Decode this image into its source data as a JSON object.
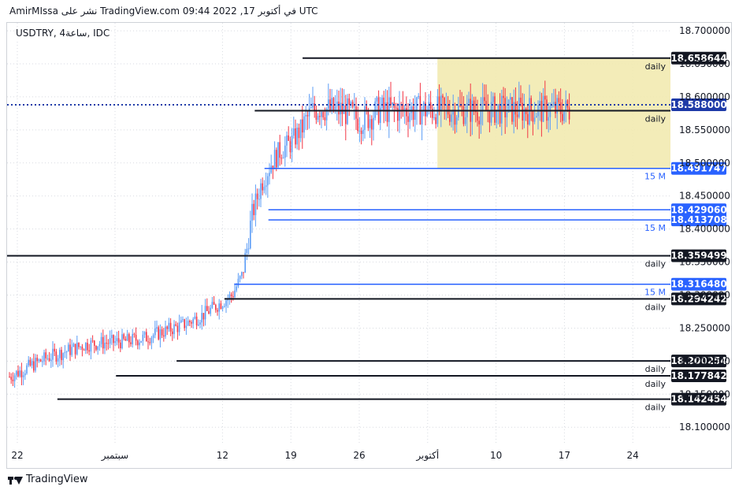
{
  "header": {
    "publish_line": "AmirMIssa نشر على TradingView.com في أكتوبر 17, 2022 09:44 UTC"
  },
  "legend": {
    "symbol_line": "USDTRY, 4ساعة, IDC"
  },
  "footer": {
    "brand": "TradingView"
  },
  "colors": {
    "up": "#5b9cf6",
    "down": "#f23645",
    "zone": "#f2eab0",
    "blue_level": "#2962ff",
    "black_level": "#131722",
    "grid": "#d7dae0"
  },
  "chart_data": {
    "type": "candlestick",
    "title": "USDTRY, 4ساعة, IDC",
    "ylim": [
      18.075,
      18.722
    ],
    "y_ticks": [
      "18.700000",
      "18.650000",
      "18.600000",
      "18.550000",
      "18.500000",
      "18.450000",
      "18.400000",
      "18.350000",
      "18.300000",
      "18.250000",
      "18.200000",
      "18.150000",
      "18.100000"
    ],
    "x_ticks": [
      "22",
      "سبتمبر",
      "12",
      "19",
      "26",
      "أكتوبر",
      "10",
      "17",
      "24"
    ],
    "current_price": "18.588000",
    "zone": {
      "top": 18.658644,
      "bottom": 18.491747
    },
    "levels": [
      {
        "price": 18.658644,
        "label": "18.658644",
        "kind": "black",
        "note": "daily",
        "start_day": 29.2
      },
      {
        "price": 18.588,
        "label": "18.588000",
        "kind": "dotted",
        "note": "",
        "start_day": -9
      },
      {
        "price": 18.579,
        "label": "",
        "kind": "black",
        "note": "daily",
        "start_day": 24.3
      },
      {
        "price": 18.491747,
        "label": "18.491747",
        "kind": "blue",
        "note": "15 M",
        "start_day": 25.3
      },
      {
        "price": 18.42906,
        "label": "18.429060",
        "kind": "blue",
        "note": "",
        "start_day": 25.7
      },
      {
        "price": 18.413708,
        "label": "18.413708",
        "kind": "blue",
        "note": "15 M",
        "start_day": 25.7
      },
      {
        "price": 18.359499,
        "label": "18.359499",
        "kind": "black",
        "note": "daily",
        "start_day": -9
      },
      {
        "price": 18.31648,
        "label": "18.316480",
        "kind": "blue",
        "note": "15 M",
        "start_day": 22.2
      },
      {
        "price": 18.294242,
        "label": "18.294242",
        "kind": "black",
        "note": "daily",
        "start_day": 21.2
      },
      {
        "price": 18.200254,
        "label": "18.200254",
        "kind": "black",
        "note": "daily",
        "start_day": 16.3
      },
      {
        "price": 18.177842,
        "label": "18.177842",
        "kind": "black",
        "note": "daily",
        "start_day": 10.1
      },
      {
        "price": 18.142454,
        "label": "18.142454",
        "kind": "black",
        "note": "daily",
        "start_day": 4.1
      }
    ],
    "price_path": [
      [
        -9.0,
        18.11
      ],
      [
        -7.0,
        18.14
      ],
      [
        -5.0,
        18.155
      ],
      [
        -3.0,
        18.165
      ],
      [
        -1.0,
        18.175
      ],
      [
        1.0,
        18.19
      ],
      [
        3.0,
        18.205
      ],
      [
        5.0,
        18.215
      ],
      [
        7.0,
        18.225
      ],
      [
        9.0,
        18.228
      ],
      [
        11.0,
        18.23
      ],
      [
        13.0,
        18.235
      ],
      [
        15.0,
        18.245
      ],
      [
        17.0,
        18.255
      ],
      [
        19.0,
        18.27
      ],
      [
        20.5,
        18.285
      ],
      [
        22.0,
        18.3
      ],
      [
        23.0,
        18.33
      ],
      [
        23.5,
        18.37
      ],
      [
        24.0,
        18.42
      ],
      [
        25.0,
        18.47
      ],
      [
        26.0,
        18.5
      ],
      [
        27.0,
        18.52
      ],
      [
        28.0,
        18.53
      ],
      [
        29.0,
        18.55
      ],
      [
        30.0,
        18.575
      ],
      [
        31.0,
        18.585
      ],
      [
        32.0,
        18.58
      ],
      [
        33.0,
        18.58
      ],
      [
        34.0,
        18.575
      ],
      [
        35.0,
        18.565
      ],
      [
        36.0,
        18.57
      ],
      [
        37.0,
        18.58
      ]
    ]
  }
}
